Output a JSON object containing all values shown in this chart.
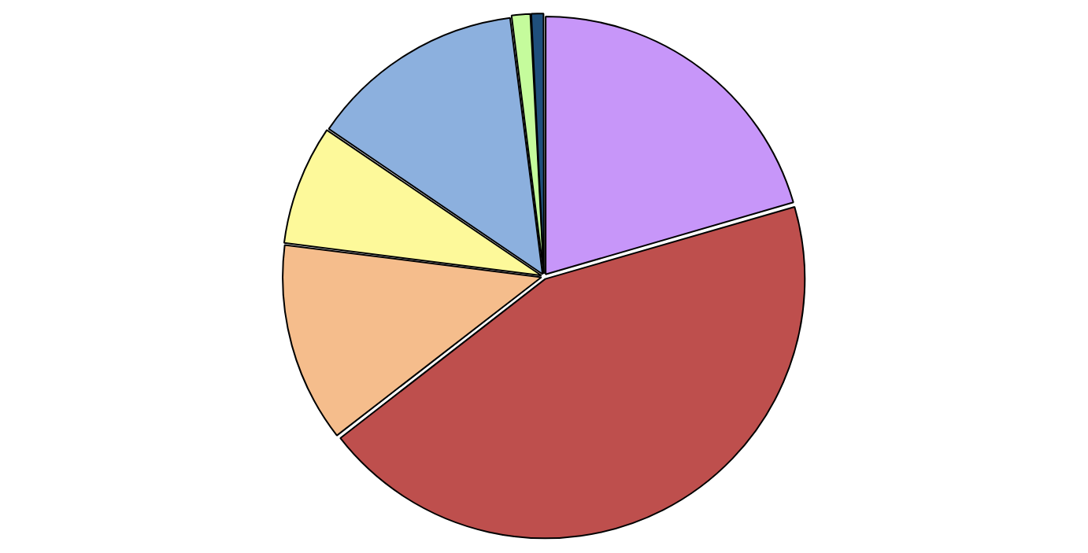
{
  "chart_data": {
    "type": "pie",
    "categories": [
      null,
      null,
      null,
      null,
      null,
      null,
      null
    ],
    "values": [
      20.5,
      44,
      12.5,
      7.5,
      13.5,
      1.2,
      0.8
    ],
    "colors": [
      "#c796f9",
      "#be4f4d",
      "#f5bd8c",
      "#fdf99a",
      "#8cb0de",
      "#c5fb9c",
      "#1f4f7c"
    ],
    "legend": false
  }
}
